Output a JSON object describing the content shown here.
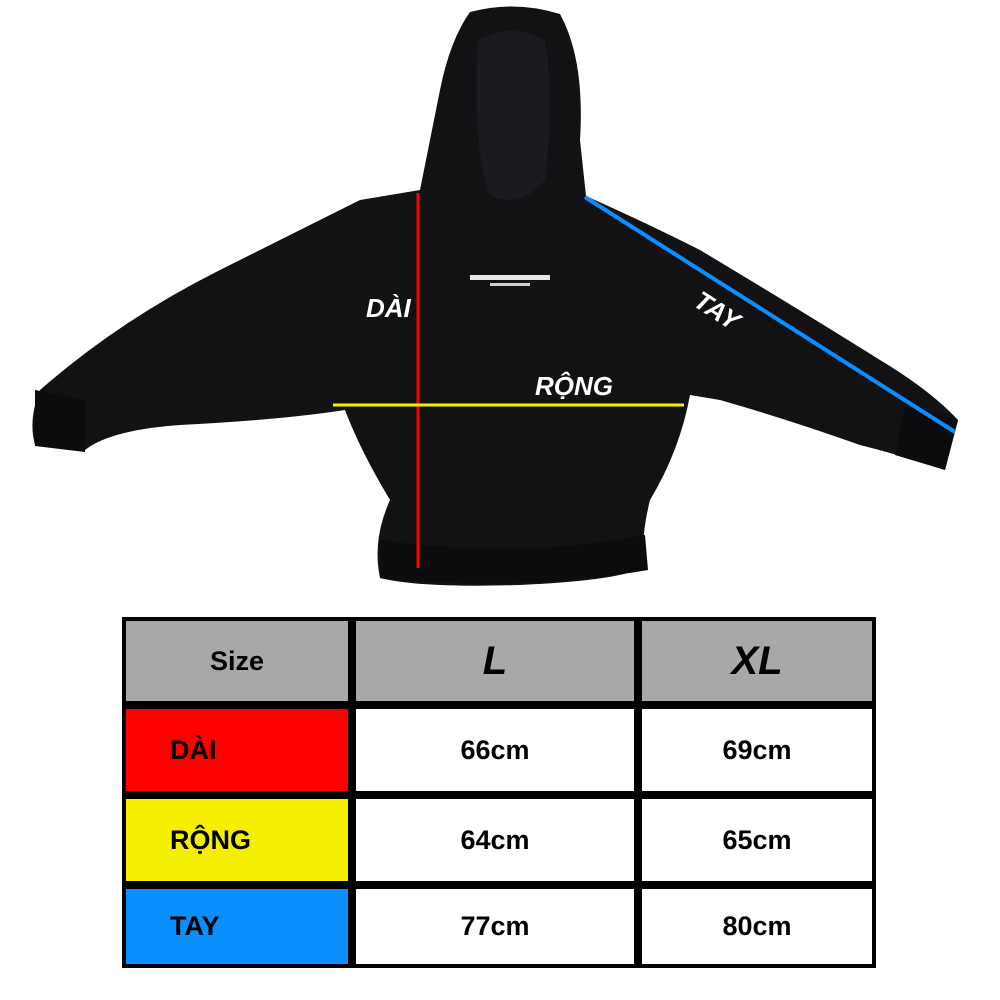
{
  "diagram": {
    "labels": {
      "length": "DÀI",
      "width": "RỘNG",
      "sleeve": "TAY"
    },
    "colors": {
      "length": "#ff0000",
      "width": "#f5f000",
      "sleeve": "#0a8fff",
      "garment": "#111114"
    }
  },
  "size_table": {
    "header": [
      "Size",
      "L",
      "XL"
    ],
    "header_color": "#a8a8a8",
    "rows": [
      {
        "label": "DÀI",
        "color": "#ff0000",
        "values": [
          "66cm",
          "69cm"
        ]
      },
      {
        "label": "RỘNG",
        "color": "#f5f000",
        "values": [
          "64cm",
          "65cm"
        ]
      },
      {
        "label": "TAY",
        "color": "#0a8fff",
        "values": [
          "77cm",
          "80cm"
        ]
      }
    ]
  }
}
